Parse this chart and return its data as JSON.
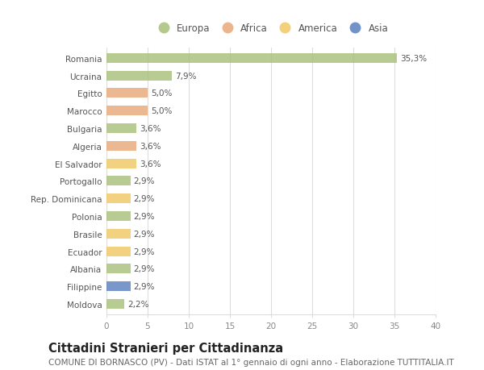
{
  "countries": [
    "Romania",
    "Ucraina",
    "Egitto",
    "Marocco",
    "Bulgaria",
    "Algeria",
    "El Salvador",
    "Portogallo",
    "Rep. Dominicana",
    "Polonia",
    "Brasile",
    "Ecuador",
    "Albania",
    "Filippine",
    "Moldova"
  ],
  "values": [
    35.3,
    7.9,
    5.0,
    5.0,
    3.6,
    3.6,
    3.6,
    2.9,
    2.9,
    2.9,
    2.9,
    2.9,
    2.9,
    2.9,
    2.2
  ],
  "labels": [
    "35,3%",
    "7,9%",
    "5,0%",
    "5,0%",
    "3,6%",
    "3,6%",
    "3,6%",
    "2,9%",
    "2,9%",
    "2,9%",
    "2,9%",
    "2,9%",
    "2,9%",
    "2,9%",
    "2,2%"
  ],
  "continents": [
    "Europa",
    "Europa",
    "Africa",
    "Africa",
    "Europa",
    "Africa",
    "America",
    "Europa",
    "America",
    "Europa",
    "America",
    "America",
    "Europa",
    "Asia",
    "Europa"
  ],
  "continent_colors": {
    "Europa": "#a8c07a",
    "Africa": "#e8a97a",
    "America": "#f0c865",
    "Asia": "#5b80bf"
  },
  "legend_order": [
    "Europa",
    "Africa",
    "America",
    "Asia"
  ],
  "title": "Cittadini Stranieri per Cittadinanza",
  "subtitle": "COMUNE DI BORNASCO (PV) - Dati ISTAT al 1° gennaio di ogni anno - Elaborazione TUTTITALIA.IT",
  "xlim": [
    0,
    40
  ],
  "xticks": [
    0,
    5,
    10,
    15,
    20,
    25,
    30,
    35,
    40
  ],
  "background_color": "#ffffff",
  "grid_color": "#dddddd",
  "bar_height": 0.55,
  "title_fontsize": 10.5,
  "subtitle_fontsize": 7.5,
  "label_fontsize": 7.5,
  "tick_fontsize": 7.5,
  "legend_fontsize": 8.5
}
